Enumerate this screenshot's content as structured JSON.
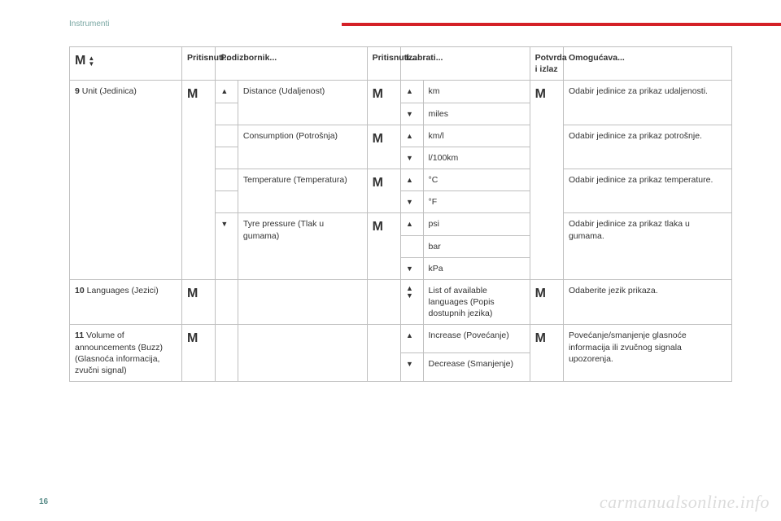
{
  "header": {
    "section": "Instrumenti"
  },
  "page_number": "16",
  "watermark": "carmanualsonline.info",
  "glyphs": {
    "M": "M",
    "up": "▲",
    "down": "▼"
  },
  "headers": {
    "press1": "Pritisnuti...",
    "submenu": "Podizbornik...",
    "press2": "Pritisnuti...",
    "choose": "Izabrati...",
    "confirm": "Potvrda i izlaz",
    "enables": "Omogućava..."
  },
  "row9": {
    "label_num": "9",
    "label_rest": " Unit (Jedinica)",
    "items": [
      {
        "name": "Distance (Udaljenost)",
        "opts": [
          "km",
          "miles"
        ],
        "desc": "Odabir jedinice za prikaz udaljenosti."
      },
      {
        "name": "Consumption (Potrošnja)",
        "opts": [
          "km/l",
          "l/100km"
        ],
        "desc": "Odabir jedinice za prikaz potrošnje."
      },
      {
        "name": "Temperature (Temperatura)",
        "opts": [
          "°C",
          "°F"
        ],
        "desc": "Odabir jedinice za prikaz temperature."
      },
      {
        "name": "Tyre pressure (Tlak u gumama)",
        "opts": [
          "psi",
          "bar",
          "kPa"
        ],
        "desc": "Odabir jedinice za prikaz tlaka u gumama."
      }
    ]
  },
  "row10": {
    "label_num": "10",
    "label_rest": " Languages (Jezici)",
    "choose": "List of available languages (Popis dostupnih jezika)",
    "desc": "Odaberite jezik prikaza."
  },
  "row11": {
    "label_num": "11",
    "label_rest": " Volume of announcements (Buzz) (Glasnoća informacija, zvučni signal)",
    "inc": "Increase (Povećanje)",
    "dec": "Decrease (Smanjenje)",
    "desc": "Povećanje/smanjenje glasnoće informacija ili zvučnog signala upozorenja."
  }
}
